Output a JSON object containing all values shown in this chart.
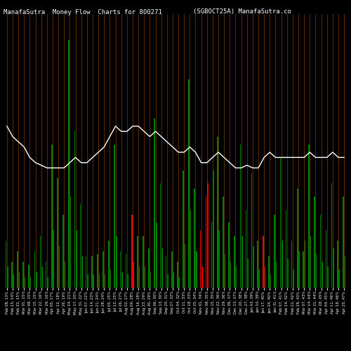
{
  "title_left": "ManafaSutra  Money Flow  Charts for 800271",
  "title_right": "(SGBOCT25A) ManafaSutra.co",
  "background_color": "#000000",
  "bar_colors": [
    "green",
    "green",
    "green",
    "green",
    "green",
    "green",
    "green",
    "green",
    "green",
    "green",
    "green",
    "green",
    "green",
    "green",
    "green",
    "green",
    "green",
    "green",
    "green",
    "green",
    "green",
    "green",
    "red",
    "green",
    "green",
    "green",
    "green",
    "green",
    "green",
    "green",
    "green",
    "green",
    "green",
    "green",
    "red",
    "red",
    "green",
    "green",
    "green",
    "green",
    "green",
    "green",
    "green",
    "green",
    "green",
    "red",
    "green",
    "green",
    "green",
    "green",
    "green",
    "green",
    "green",
    "green",
    "green",
    "green",
    "green",
    "green",
    "green",
    "green"
  ],
  "tall_bars": [
    0.18,
    0.1,
    0.14,
    0.1,
    0.09,
    0.14,
    0.2,
    0.1,
    0.55,
    0.42,
    0.28,
    0.95,
    0.6,
    0.32,
    0.12,
    0.12,
    0.13,
    0.14,
    0.18,
    0.55,
    0.14,
    0.13,
    0.28,
    0.2,
    0.2,
    0.15,
    0.65,
    0.4,
    0.12,
    0.14,
    0.1,
    0.45,
    0.8,
    0.38,
    0.22,
    0.35,
    0.25,
    0.58,
    0.35,
    0.25,
    0.2,
    0.55,
    0.3,
    0.44,
    0.18,
    0.2,
    0.12,
    0.28,
    0.5,
    0.3,
    0.18,
    0.38,
    0.14,
    0.55,
    0.35,
    0.28,
    0.22,
    0.4,
    0.18,
    0.35
  ],
  "short_bars": [
    0.08,
    0.05,
    0.06,
    0.04,
    0.04,
    0.06,
    0.08,
    0.04,
    0.22,
    0.16,
    0.1,
    0.35,
    0.22,
    0.12,
    0.05,
    0.05,
    0.05,
    0.05,
    0.07,
    0.2,
    0.06,
    0.05,
    0.1,
    0.08,
    0.08,
    0.06,
    0.25,
    0.15,
    0.05,
    0.06,
    0.04,
    0.17,
    0.3,
    0.14,
    0.08,
    0.4,
    0.45,
    0.22,
    0.13,
    0.1,
    0.08,
    0.2,
    0.11,
    0.16,
    0.07,
    0.08,
    0.05,
    0.1,
    0.18,
    0.11,
    0.07,
    0.14,
    0.18,
    0.2,
    0.13,
    0.1,
    0.08,
    0.15,
    0.07,
    0.12
  ],
  "line_y": [
    0.62,
    0.58,
    0.56,
    0.54,
    0.5,
    0.48,
    0.47,
    0.46,
    0.46,
    0.46,
    0.46,
    0.48,
    0.5,
    0.48,
    0.48,
    0.5,
    0.52,
    0.54,
    0.58,
    0.62,
    0.6,
    0.6,
    0.62,
    0.62,
    0.6,
    0.58,
    0.6,
    0.58,
    0.56,
    0.54,
    0.52,
    0.52,
    0.54,
    0.52,
    0.48,
    0.48,
    0.5,
    0.52,
    0.5,
    0.48,
    0.46,
    0.46,
    0.47,
    0.46,
    0.46,
    0.5,
    0.52,
    0.5,
    0.5,
    0.5,
    0.5,
    0.5,
    0.5,
    0.52,
    0.5,
    0.5,
    0.5,
    0.52,
    0.5,
    0.5
  ],
  "orange_line_color": "#8B4500",
  "white_line_color": "#ffffff",
  "title_fontsize": 6.5,
  "tick_fontsize": 3.8,
  "n_bars": 60,
  "ylim": [
    0,
    1.05
  ],
  "date_labels": [
    "Feb 08, 13%",
    "Feb 15, 14%",
    "Feb 22, 15%",
    "Mar 01, 15%",
    "Mar 08, 15%",
    "Mar 15, 15%",
    "Mar 22, 16%",
    "Mar 29, 16%",
    "Apr 05, 17%",
    "Apr 12, 18%",
    "Apr 26, 19%",
    "May 24, 21%",
    "May 17, 20%",
    "May 31, 22%",
    "Jun 07, 22%",
    "Jun 14, 23%",
    "Jun 21, 24%",
    "Jun 28, 24%",
    "Jul 05, 25%",
    "Jul 12, 25%",
    "Jul 26, 27%",
    "Aug 02, 27%",
    "Aug 09, 28%",
    "Aug 16, 28%",
    "Aug 23, 29%",
    "Aug 30, 29%",
    "Sep 06, 30%",
    "Sep 13, 30%",
    "Sep 20, 31%",
    "Sep 27, 32%",
    "Oct 04, 32%",
    "Oct 11, 33%",
    "Oct 18, 33%",
    "Oct 25, 34%",
    "Nov 01, 34%",
    "Nov 08, 35%",
    "Nov 15, 35%",
    "Nov 22, 36%",
    "Nov 29, 36%",
    "Dec 06, 37%",
    "Dec 13, 37%",
    "Dec 20, 38%",
    "Dec 27, 38%",
    "Jan 03, 39%",
    "Jan 10, 39%",
    "Jan 17, 40%",
    "Jan 24, 40%",
    "Jan 31, 41%",
    "Feb 07, 41%",
    "Feb 14, 42%",
    "Feb 21, 42%",
    "Feb 28, 43%",
    "Mar 07, 43%",
    "Mar 14, 44%",
    "Mar 21, 44%",
    "Mar 28, 45%",
    "Apr 04, 45%",
    "Apr 11, 46%",
    "Apr 18, 46%",
    "Apr 25, 47%"
  ]
}
